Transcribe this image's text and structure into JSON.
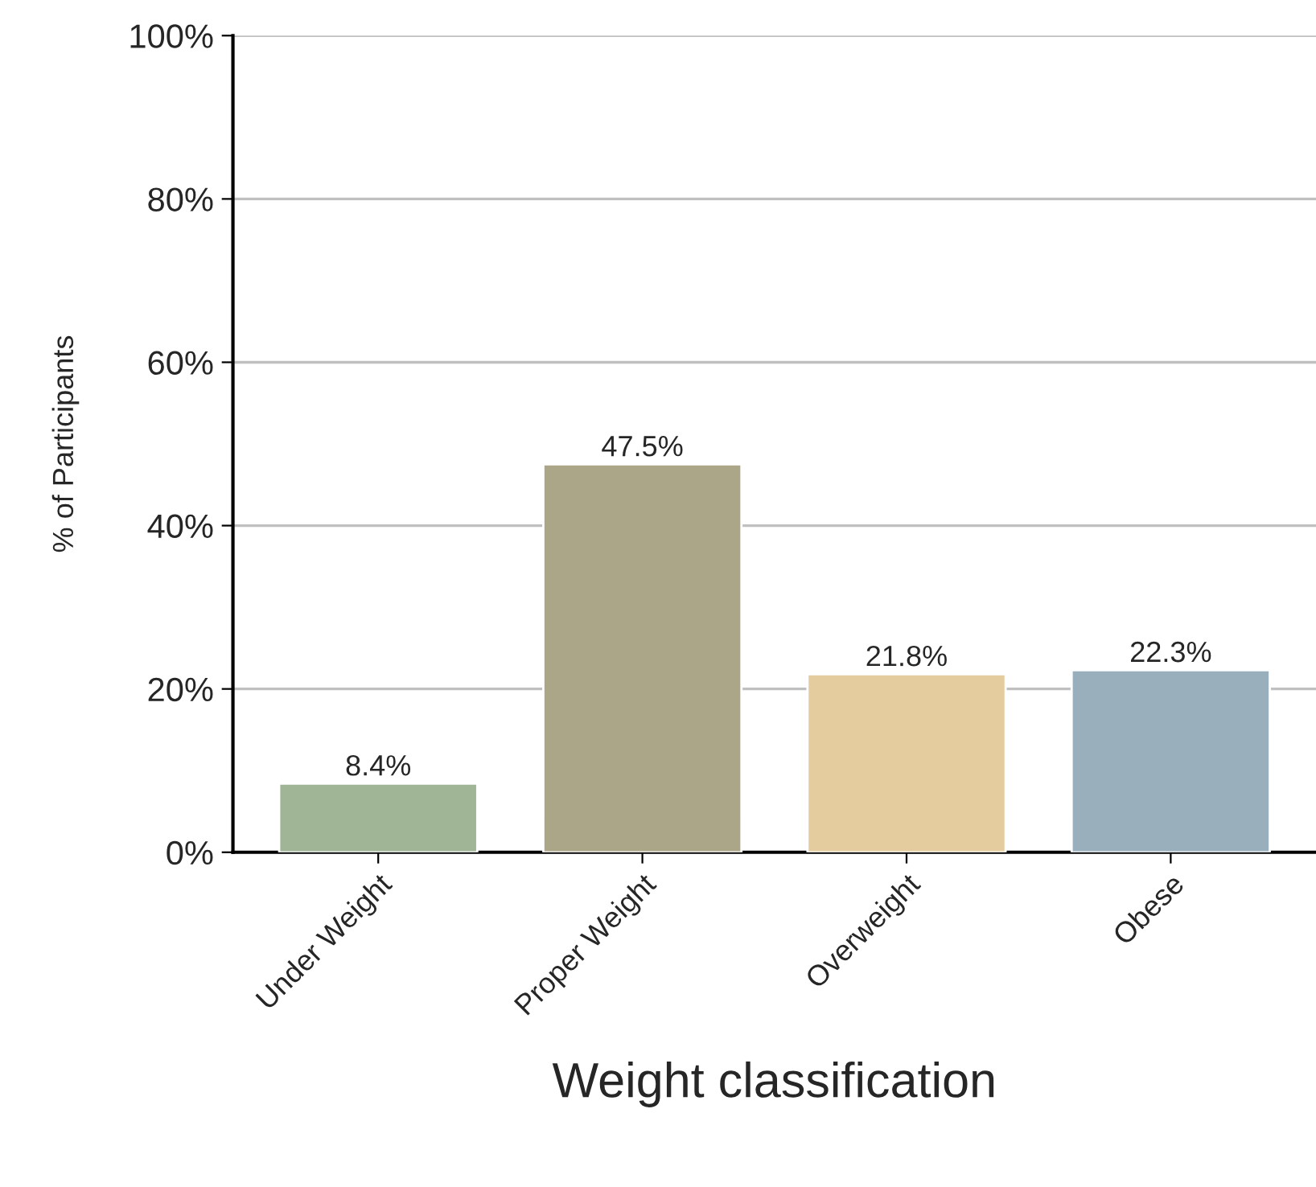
{
  "chart_data": {
    "type": "bar",
    "xlabel": "Weight classification",
    "ylabel": "% of Participants",
    "categories": [
      "Under Weight",
      "Proper Weight",
      "Overweight",
      "Obese"
    ],
    "values": [
      8.4,
      47.5,
      21.8,
      22.3
    ],
    "colors": [
      "#a0b596",
      "#aca689",
      "#e5cc9f",
      "#9aafbc"
    ],
    "value_labels": [
      "8.4%",
      "47.5%",
      "21.8%",
      "22.3%"
    ],
    "ylim": [
      0,
      100
    ],
    "yticks": [
      {
        "value": 0,
        "label": "0%"
      },
      {
        "value": 20,
        "label": "20%"
      },
      {
        "value": 40,
        "label": "40%"
      },
      {
        "value": 60,
        "label": "60%"
      },
      {
        "value": 80,
        "label": "80%"
      },
      {
        "value": 100,
        "label": "100%"
      }
    ],
    "grid": "y",
    "legend": false
  }
}
